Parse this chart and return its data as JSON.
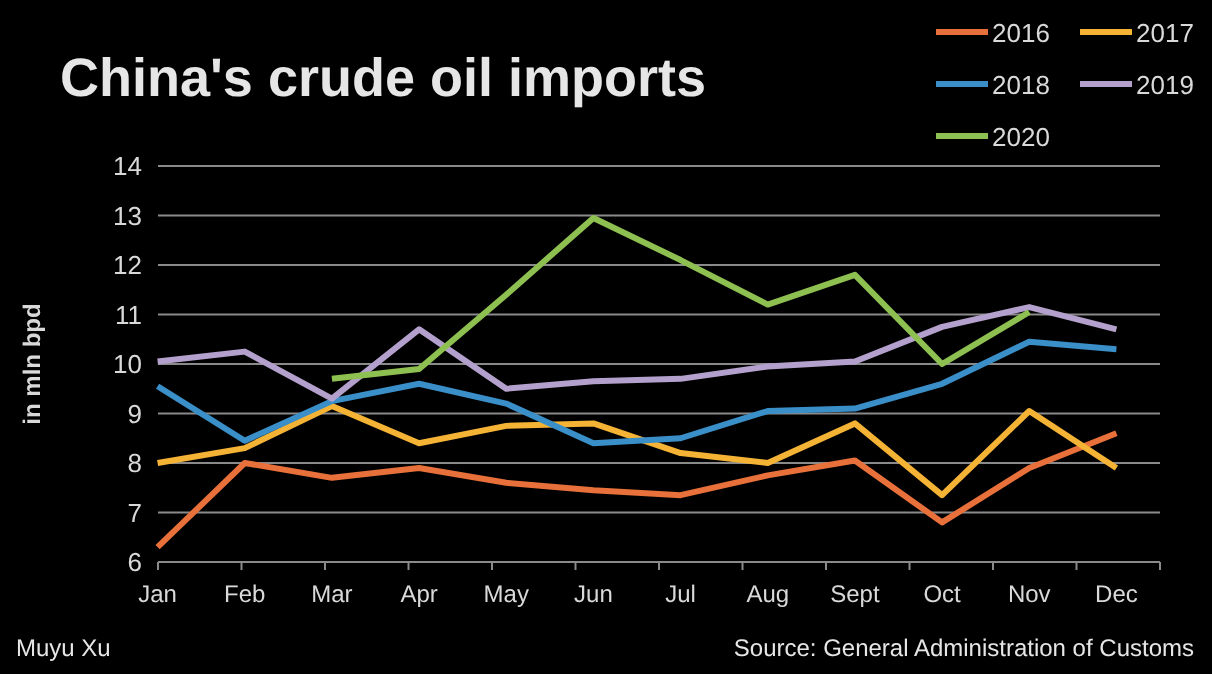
{
  "chart_data": {
    "type": "line",
    "title": "China's crude oil imports",
    "ylabel": "in mln bpd",
    "categories": [
      "Jan",
      "Feb",
      "Mar",
      "Apr",
      "May",
      "Jun",
      "Jul",
      "Aug",
      "Sept",
      "Oct",
      "Nov",
      "Dec"
    ],
    "series": [
      {
        "name": "2016",
        "color": "#e8703a",
        "values": [
          6.3,
          8.0,
          7.7,
          7.9,
          7.6,
          7.45,
          7.35,
          7.75,
          8.05,
          6.8,
          7.9,
          8.6
        ]
      },
      {
        "name": "2017",
        "color": "#f5b335",
        "values": [
          8.0,
          8.3,
          9.15,
          8.4,
          8.75,
          8.8,
          8.2,
          8.0,
          8.8,
          7.35,
          9.05,
          7.9
        ]
      },
      {
        "name": "2018",
        "color": "#3a8fc8",
        "values": [
          9.55,
          8.45,
          9.25,
          9.6,
          9.2,
          8.4,
          8.5,
          9.05,
          9.1,
          9.6,
          10.45,
          10.3
        ]
      },
      {
        "name": "2019",
        "color": "#b4a0cc",
        "values": [
          10.05,
          10.25,
          9.3,
          10.7,
          9.5,
          9.65,
          9.7,
          9.95,
          10.05,
          10.75,
          11.15,
          10.7
        ]
      },
      {
        "name": "2020",
        "color": "#8dc050",
        "values": [
          null,
          null,
          9.7,
          9.9,
          11.4,
          12.95,
          12.1,
          11.2,
          11.8,
          10.0,
          11.05,
          null
        ]
      }
    ],
    "ylim": [
      6,
      14
    ],
    "yticks": [
      6,
      7,
      8,
      9,
      10,
      11,
      12,
      13,
      14
    ],
    "grid": "y",
    "legend": "top right",
    "annotations": [
      "Muyu Xu",
      "Source: General Administration of Customs"
    ]
  }
}
